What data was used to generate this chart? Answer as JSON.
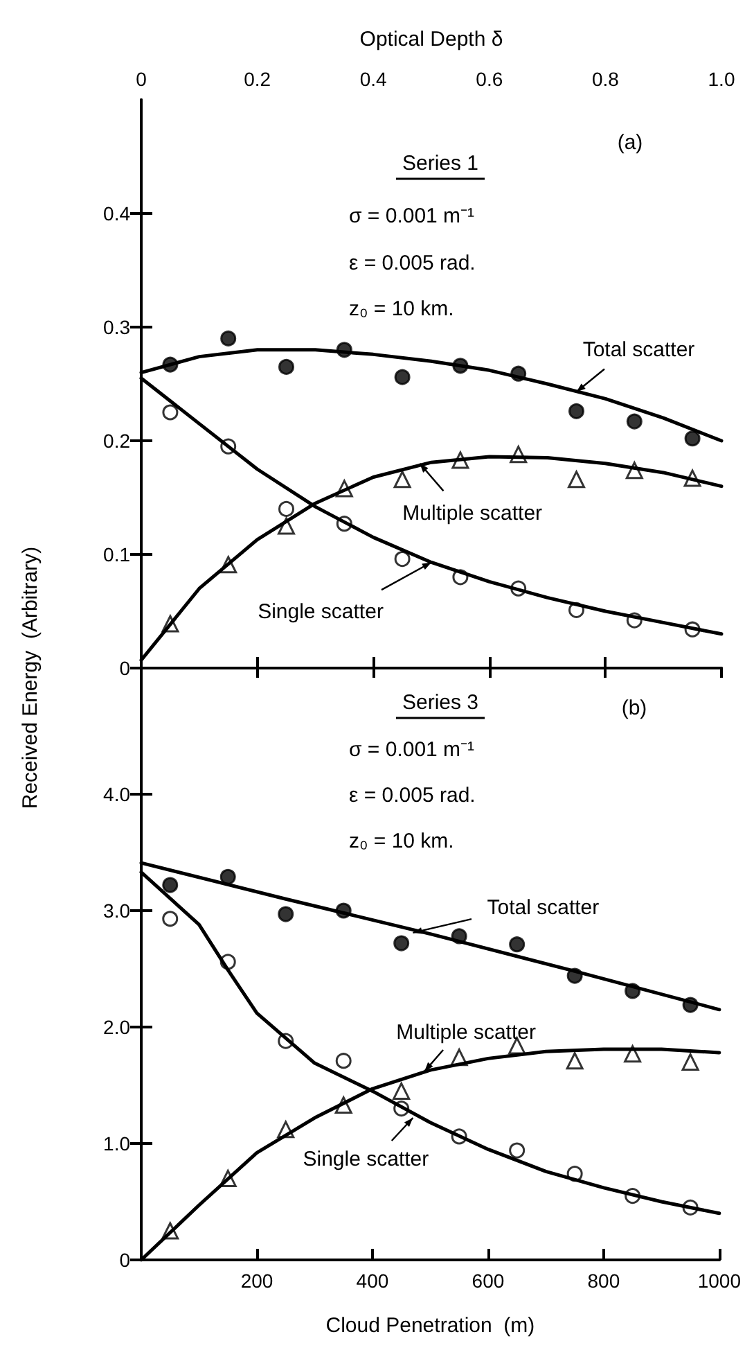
{
  "chart_data": [
    {
      "type": "scatter",
      "xlabel": "Optical Depth δ",
      "ylabel": "Received Energy  (Arbitrary)",
      "xlim": [
        0,
        1
      ],
      "xticks": [
        0,
        0.2,
        0.4,
        0.6,
        0.8,
        {
          "value": 1,
          "label": "1.0"
        }
      ],
      "ylim": [
        0,
        0.5
      ],
      "yticks": [
        0,
        0.1,
        0.2,
        0.3,
        0.4
      ],
      "grid": false,
      "annotations": [
        "(a)",
        "Series 1",
        "σ = 0.001 m⁻¹",
        "ε = 0.005 rad.",
        "z₀ = 10 km.",
        {
          "text": "Total scatter",
          "x": 0.75,
          "y": 0.243
        },
        {
          "text": "Multiple scatter",
          "x": 0.48,
          "y": 0.18
        },
        {
          "text": "Single scatter",
          "x": 0.5,
          "y": 0.093
        }
      ],
      "x": [
        0.05,
        0.15,
        0.25,
        0.35,
        0.45,
        0.55,
        0.65,
        0.75,
        0.85,
        0.95
      ],
      "series": [
        {
          "type": "line",
          "color": "#000000",
          "marker": "none",
          "x": [
            0,
            0.1,
            0.2,
            0.3,
            0.4,
            0.5,
            0.6,
            0.7,
            0.8,
            0.9,
            1
          ],
          "values": [
            0.26,
            0.274,
            0.28,
            0.28,
            0.276,
            0.27,
            0.262,
            0.25,
            0.237,
            0.22,
            0.2
          ]
        },
        {
          "type": "line",
          "color": "#000000",
          "marker": "none",
          "x": [
            0,
            0.1,
            0.2,
            0.3,
            0.4,
            0.5,
            0.6,
            0.7,
            0.8,
            0.9,
            1
          ],
          "values": [
            0.007,
            0.07,
            0.113,
            0.145,
            0.168,
            0.181,
            0.186,
            0.185,
            0.18,
            0.172,
            0.16
          ]
        },
        {
          "type": "line",
          "color": "#000000",
          "marker": "none",
          "x": [
            0,
            0.1,
            0.2,
            0.3,
            0.4,
            0.5,
            0.6,
            0.7,
            0.8,
            0.9,
            1
          ],
          "values": [
            0.255,
            0.215,
            0.175,
            0.142,
            0.115,
            0.093,
            0.076,
            0.062,
            0.05,
            0.04,
            0.03
          ]
        },
        {
          "color": "#000000",
          "marker": "circle",
          "values": [
            0.267,
            0.29,
            0.265,
            0.28,
            0.256,
            0.266,
            0.259,
            0.226,
            0.217,
            0.202
          ]
        },
        {
          "color": "#ffffff",
          "marker": "triangle",
          "values": [
            0.039,
            0.091,
            0.125,
            0.158,
            0.166,
            0.183,
            0.188,
            0.166,
            0.174,
            0.167
          ]
        },
        {
          "color": "#ffffff",
          "marker": "circle",
          "values": [
            0.225,
            0.195,
            0.14,
            0.127,
            0.096,
            0.08,
            0.07,
            0.051,
            0.042,
            0.034
          ]
        }
      ]
    },
    {
      "type": "scatter",
      "xlabel": "Cloud Penetration  (m)",
      "xlim": [
        0,
        1000
      ],
      "xticks": [
        200,
        400,
        600,
        800,
        1000
      ],
      "ylim": [
        0,
        5
      ],
      "yticks": [
        0,
        {
          "value": 1,
          "label": "1.0"
        },
        {
          "value": 2,
          "label": "2.0"
        },
        {
          "value": 3,
          "label": "3.0"
        },
        {
          "value": 4,
          "label": "4.0"
        }
      ],
      "grid": false,
      "annotations": [
        "(b)",
        "Series 3",
        "σ = 0.001 m⁻¹",
        "ε = 0.005 rad.",
        "z₀ = 10 km.",
        {
          "text": "Total scatter",
          "x": 470,
          "y": 2.81
        },
        {
          "text": "Multiple scatter",
          "x": 490,
          "y": 1.62
        },
        {
          "text": "Single scatter",
          "x": 470,
          "y": 1.22
        }
      ],
      "x": [
        50,
        150,
        250,
        350,
        450,
        550,
        650,
        750,
        850,
        950
      ],
      "series": [
        {
          "type": "line",
          "color": "#000000",
          "marker": "none",
          "x": [
            0,
            250,
            500,
            750,
            1000
          ],
          "values": [
            3.41,
            3.1,
            2.8,
            2.48,
            2.15
          ]
        },
        {
          "type": "line",
          "color": "#000000",
          "marker": "none",
          "x": [
            0,
            100,
            200,
            300,
            400,
            500,
            600,
            700,
            800,
            900,
            1000
          ],
          "values": [
            0,
            0.47,
            0.92,
            1.22,
            1.47,
            1.63,
            1.73,
            1.79,
            1.81,
            1.81,
            1.78
          ]
        },
        {
          "type": "line",
          "color": "#000000",
          "marker": "none",
          "x": [
            0,
            100,
            150,
            200,
            300,
            400,
            500,
            600,
            700,
            800,
            900,
            1000
          ],
          "values": [
            3.33,
            2.88,
            2.49,
            2.12,
            1.69,
            1.45,
            1.18,
            0.95,
            0.76,
            0.62,
            0.5,
            0.4
          ]
        },
        {
          "color": "#000000",
          "marker": "circle",
          "values": [
            3.22,
            3.29,
            2.97,
            3.0,
            2.72,
            2.78,
            2.71,
            2.44,
            2.31,
            2.19
          ]
        },
        {
          "color": "#ffffff",
          "marker": "triangle",
          "values": [
            0.25,
            0.7,
            1.12,
            1.33,
            1.45,
            1.74,
            1.84,
            1.71,
            1.77,
            1.7
          ]
        },
        {
          "color": "#ffffff",
          "marker": "circle",
          "values": [
            2.93,
            2.56,
            1.88,
            1.71,
            1.3,
            1.06,
            0.94,
            0.74,
            0.55,
            0.45
          ]
        }
      ]
    }
  ]
}
